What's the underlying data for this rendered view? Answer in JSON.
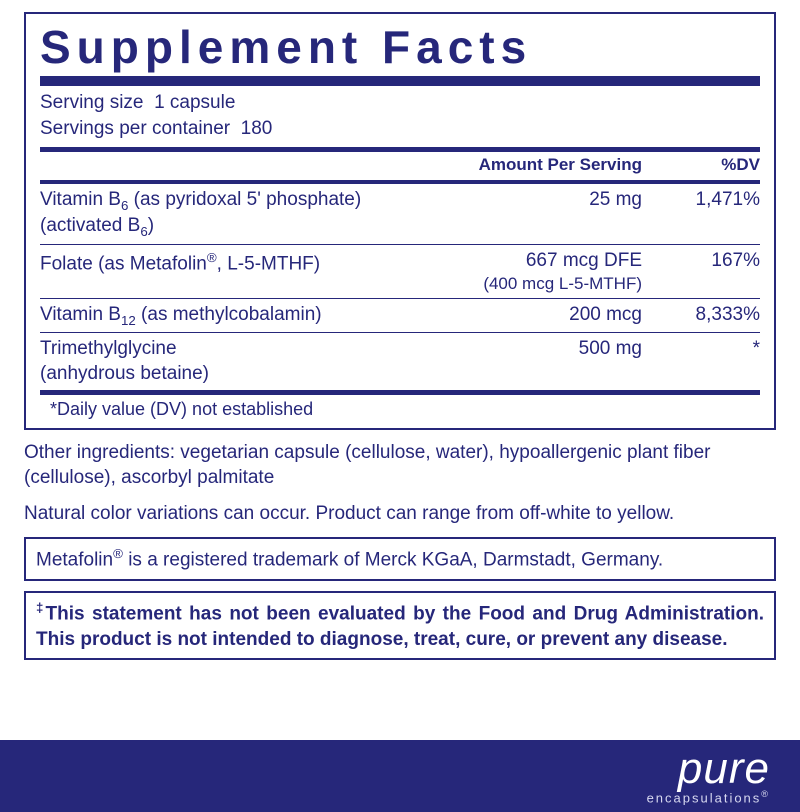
{
  "colors": {
    "primary": "#26277a",
    "background": "#ffffff"
  },
  "title": "Supplement Facts",
  "serving_size_label": "Serving size",
  "serving_size_value": "1 capsule",
  "servings_per_container_label": "Servings per container",
  "servings_per_container_value": "180",
  "headers": {
    "amount": "Amount Per Serving",
    "dv": "%DV"
  },
  "rows": [
    {
      "name": "Vitamin B",
      "name_sub": "6",
      "name_extra": " (as pyridoxal 5' phosphate)",
      "name_line2_pre": "(activated B",
      "name_line2_sub": "6",
      "name_line2_post": ")",
      "amount": "25 mg",
      "dv": "1,471%"
    },
    {
      "name": "Folate (as Metafolin",
      "name_sup": "®",
      "name_extra": ", L-5-MTHF)",
      "amount": "667 mcg DFE",
      "amount_line2": "(400 mcg L-5-MTHF)",
      "dv": "167%"
    },
    {
      "name": "Vitamin B",
      "name_sub": "12",
      "name_extra": " (as methylcobalamin)",
      "amount": "200 mcg",
      "dv": "8,333%"
    },
    {
      "name": "Trimethylglycine",
      "name_line2": "(anhydrous betaine)",
      "amount": "500 mg",
      "dv": "*"
    }
  ],
  "dv_note": "*Daily value (DV) not established",
  "other_ingredients": "Other ingredients: vegetarian capsule (cellulose, water), hypoallergenic plant fiber (cellulose), ascorbyl palmitate",
  "color_note": "Natural color variations can occur. Product can range from off-white to yellow.",
  "trademark_pre": "Metafolin",
  "trademark_sup": "®",
  "trademark_post": " is a registered trademark of Merck KGaA, Darmstadt, Germany.",
  "disclaimer_sup": "‡",
  "disclaimer": "This statement has not been evaluated by the Food and Drug Administration. This product is not intended to diagnose, treat, cure, or prevent any disease.",
  "brand": {
    "main": "pure",
    "sub": "encapsulations",
    "reg": "®"
  }
}
